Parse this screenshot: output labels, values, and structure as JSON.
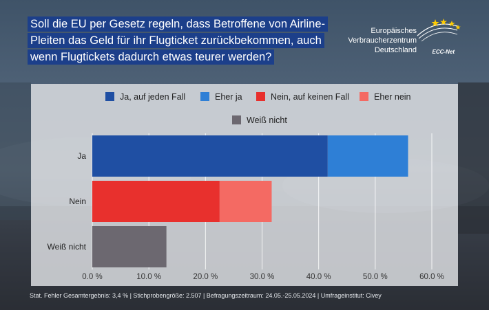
{
  "title": "Soll die EU per Gesetz regeln, dass Betroffene von Airline-Pleiten das Geld für ihr Flugticket zurückbekommen, auch wenn Flugtickets dadurch etwas teurer werden?",
  "title_lines": [
    "Soll die EU per Gesetz regeln, dass Betroffene von Airline-",
    "Pleiten das Geld für ihr Flugticket zurückbekommen, auch",
    "wenn Flugtickets dadurch etwas teurer werden?"
  ],
  "logo": {
    "line1": "Europäisches",
    "line2": "Verbraucherzentrum",
    "line3": "Deutschland",
    "network": "ECC-Net",
    "icon": "eu-stars-arc-icon"
  },
  "footer": "Stat. Fehler Gesamtergebnis: 3,4 % | Stichprobengröße: 2.507 | Befragungszeitraum: 24.05.-25.05.2024 | Umfrageinstitut: Civey",
  "colors": {
    "title_bg": "#1c3f8a",
    "ja_auf_jeden_fall": "#1f4fa3",
    "eher_ja": "#2e7fd6",
    "nein_auf_keinen_fall": "#e8302d",
    "eher_nein": "#f46a63",
    "weiss_nicht": "#6c6870"
  },
  "chart_data": {
    "type": "bar",
    "orientation": "horizontal",
    "stacked": true,
    "categories": [
      "Ja",
      "Nein",
      "Weiß nicht"
    ],
    "series": [
      {
        "name": "Ja, auf jeden Fall",
        "values": [
          41.6,
          0,
          0
        ],
        "color": "#1f4fa3"
      },
      {
        "name": "Eher ja",
        "values": [
          14.2,
          0,
          0
        ],
        "color": "#2e7fd6"
      },
      {
        "name": "Nein, auf keinen Fall",
        "values": [
          0,
          22.5,
          0
        ],
        "color": "#e8302d"
      },
      {
        "name": "Eher nein",
        "values": [
          0,
          9.2,
          0
        ],
        "color": "#f46a63"
      },
      {
        "name": "Weiß nicht",
        "values": [
          0,
          0,
          13.1
        ],
        "color": "#6c6870"
      }
    ],
    "xlim": [
      0,
      60
    ],
    "xticks": [
      0,
      10,
      20,
      30,
      40,
      50,
      60
    ],
    "xtick_labels": [
      "0.0 %",
      "10.0 %",
      "20.0 %",
      "30.0 %",
      "40.0 %",
      "50.0 %",
      "60.0 %"
    ],
    "grid": true,
    "legend_position": "top"
  }
}
